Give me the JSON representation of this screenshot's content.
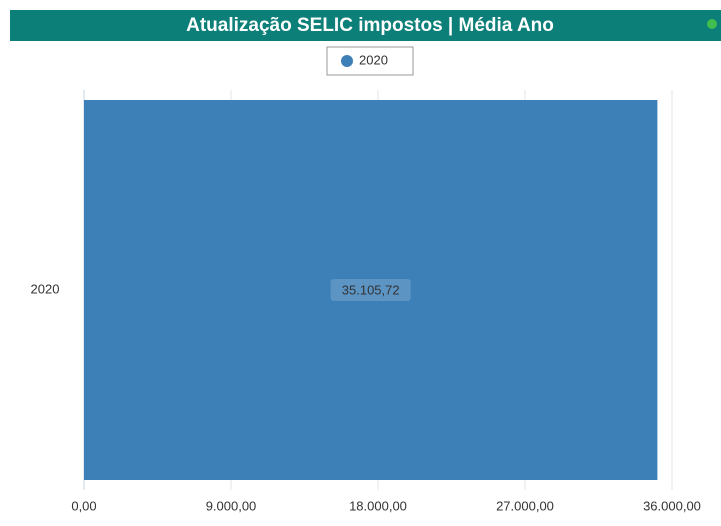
{
  "chart_data": {
    "type": "hbar",
    "title": "Atualização SELIC impostos | Média Ano",
    "categories": [
      "2020"
    ],
    "series": [
      {
        "name": "2020",
        "color": "#3d80b8",
        "values": [
          35105.72
        ],
        "value_labels": [
          "35.105,72"
        ]
      }
    ],
    "xlim": [
      0,
      36000
    ],
    "xticks": [
      {
        "value": 0,
        "label": "0,00"
      },
      {
        "value": 9000,
        "label": "9.000,00"
      },
      {
        "value": 18000,
        "label": "18.000,00"
      },
      {
        "value": 27000,
        "label": "27.000,00"
      },
      {
        "value": 36000,
        "label": "36.000,00"
      }
    ],
    "grid": true,
    "legend": "top"
  }
}
